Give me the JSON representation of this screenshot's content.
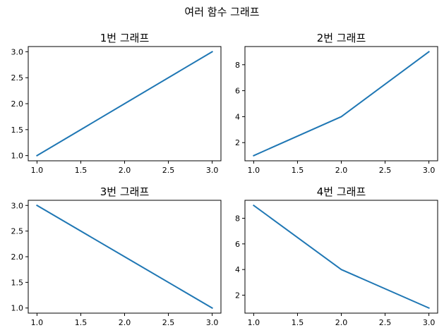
{
  "figure": {
    "title": "여러 함수 그래프"
  },
  "chart_data": [
    {
      "type": "line",
      "title": "1번 그래프",
      "xlabel": "",
      "ylabel": "",
      "x": [
        1,
        2,
        3
      ],
      "y": [
        1,
        2,
        3
      ],
      "xlim": [
        0.9,
        3.1
      ],
      "ylim": [
        0.9,
        3.1
      ],
      "xticks": [
        1.0,
        1.5,
        2.0,
        2.5,
        3.0
      ],
      "yticks": [
        1.0,
        1.5,
        2.0,
        2.5,
        3.0
      ],
      "xtick_labels": [
        "1.0",
        "1.5",
        "2.0",
        "2.5",
        "3.0"
      ],
      "ytick_labels": [
        "1.0",
        "1.5",
        "2.0",
        "2.5",
        "3.0"
      ],
      "grid": false,
      "color": "#1f77b4"
    },
    {
      "type": "line",
      "title": "2번 그래프",
      "xlabel": "",
      "ylabel": "",
      "x": [
        1,
        2,
        3
      ],
      "y": [
        1,
        4,
        9
      ],
      "xlim": [
        0.9,
        3.1
      ],
      "ylim": [
        0.6,
        9.4
      ],
      "xticks": [
        1.0,
        1.5,
        2.0,
        2.5,
        3.0
      ],
      "yticks": [
        2,
        4,
        6,
        8
      ],
      "xtick_labels": [
        "1.0",
        "1.5",
        "2.0",
        "2.5",
        "3.0"
      ],
      "ytick_labels": [
        "2",
        "4",
        "6",
        "8"
      ],
      "grid": false,
      "color": "#1f77b4"
    },
    {
      "type": "line",
      "title": "3번 그래프",
      "xlabel": "",
      "ylabel": "",
      "x": [
        1,
        2,
        3
      ],
      "y": [
        3,
        2,
        1
      ],
      "xlim": [
        0.9,
        3.1
      ],
      "ylim": [
        0.9,
        3.1
      ],
      "xticks": [
        1.0,
        1.5,
        2.0,
        2.5,
        3.0
      ],
      "yticks": [
        1.0,
        1.5,
        2.0,
        2.5,
        3.0
      ],
      "xtick_labels": [
        "1.0",
        "1.5",
        "2.0",
        "2.5",
        "3.0"
      ],
      "ytick_labels": [
        "1.0",
        "1.5",
        "2.0",
        "2.5",
        "3.0"
      ],
      "grid": false,
      "color": "#1f77b4"
    },
    {
      "type": "line",
      "title": "4번 그래프",
      "xlabel": "",
      "ylabel": "",
      "x": [
        1,
        2,
        3
      ],
      "y": [
        9,
        4,
        1
      ],
      "xlim": [
        0.9,
        3.1
      ],
      "ylim": [
        0.6,
        9.4
      ],
      "xticks": [
        1.0,
        1.5,
        2.0,
        2.5,
        3.0
      ],
      "yticks": [
        2,
        4,
        6,
        8
      ],
      "xtick_labels": [
        "1.0",
        "1.5",
        "2.0",
        "2.5",
        "3.0"
      ],
      "ytick_labels": [
        "2",
        "4",
        "6",
        "8"
      ],
      "grid": false,
      "color": "#1f77b4"
    }
  ]
}
